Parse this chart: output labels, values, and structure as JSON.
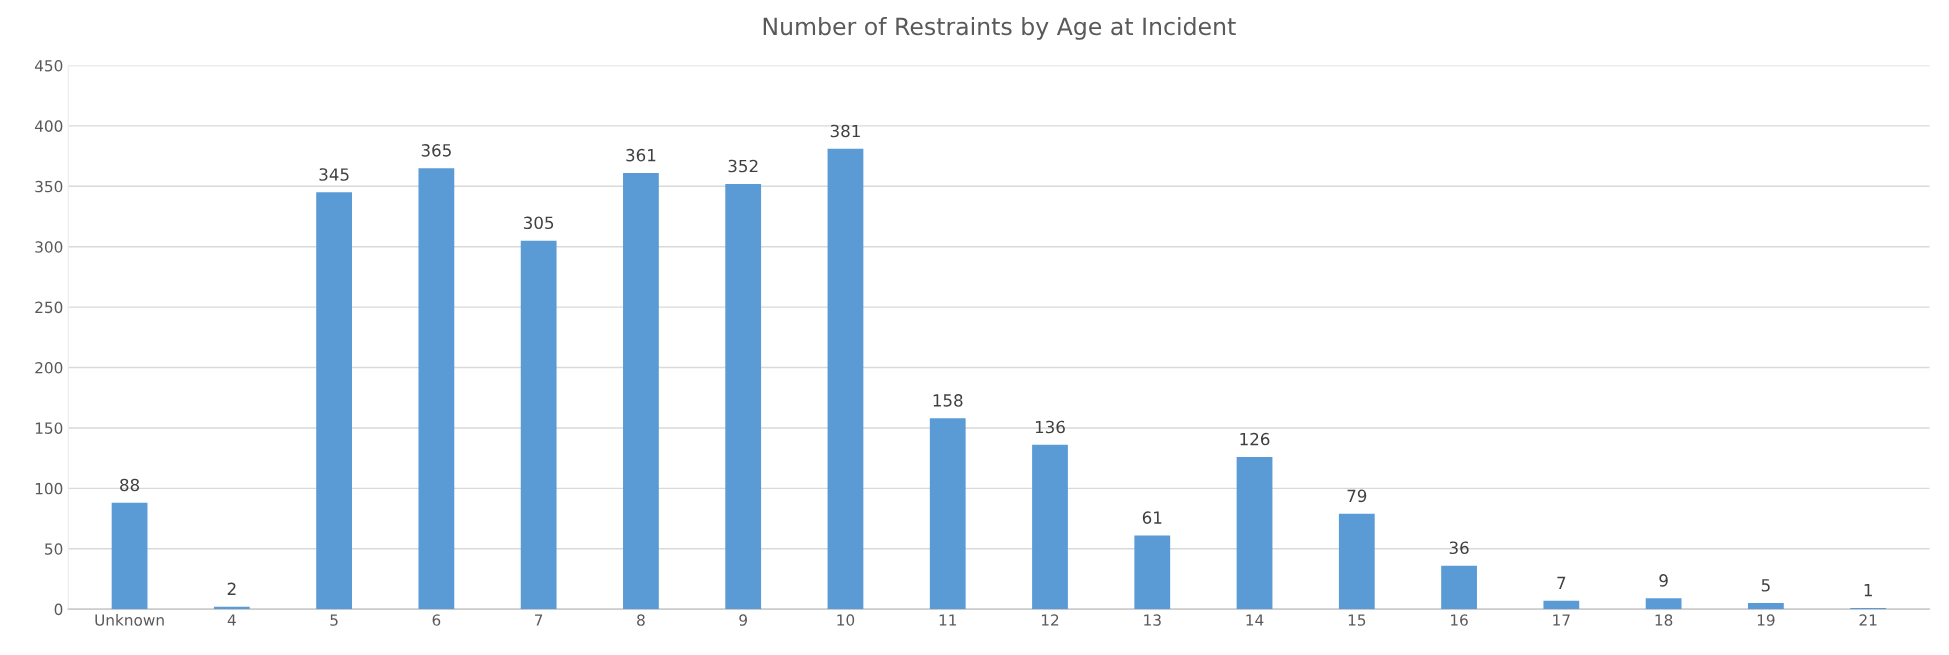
{
  "chart_data": {
    "type": "bar",
    "title": "Number of Restraints by Age at Incident",
    "categories": [
      "Unknown",
      "4",
      "5",
      "6",
      "7",
      "8",
      "9",
      "10",
      "11",
      "12",
      "13",
      "14",
      "15",
      "16",
      "17",
      "18",
      "19",
      "21"
    ],
    "values": [
      88,
      2,
      345,
      365,
      305,
      361,
      352,
      381,
      158,
      136,
      61,
      126,
      79,
      36,
      7,
      9,
      5,
      1
    ],
    "color": "#5b9bd5",
    "ylim": [
      0,
      450
    ],
    "yticks": [
      0,
      50,
      100,
      150,
      200,
      250,
      300,
      350,
      400,
      450
    ],
    "grid": "y",
    "data_labels": true,
    "legend": false
  }
}
